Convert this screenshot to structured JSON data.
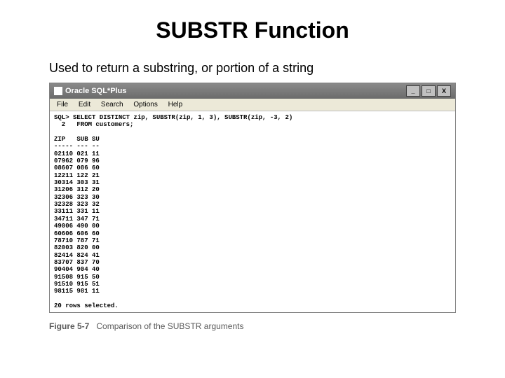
{
  "title": "SUBSTR Function",
  "subtitle": "Used to return a substring, or portion of a string",
  "window": {
    "app_title": "Oracle SQL*Plus",
    "menus": [
      "File",
      "Edit",
      "Search",
      "Options",
      "Help"
    ],
    "controls": {
      "minimize": "_",
      "maximize": "□",
      "close": "X"
    }
  },
  "sql": {
    "prompt": "SQL>",
    "line1": "SELECT DISTINCT zip, SUBSTR(zip, 1, 3), SUBSTR(zip, -3, 2)",
    "line2_num": "  2",
    "line2": "  FROM customers;"
  },
  "columns": {
    "c1": "ZIP",
    "c2": "SUB",
    "c3": "SU",
    "sep1": "-----",
    "sep2": "---",
    "sep3": "--"
  },
  "rows": [
    [
      "02110",
      "021",
      "11"
    ],
    [
      "07962",
      "079",
      "96"
    ],
    [
      "08607",
      "086",
      "60"
    ],
    [
      "12211",
      "122",
      "21"
    ],
    [
      "30314",
      "303",
      "31"
    ],
    [
      "31206",
      "312",
      "20"
    ],
    [
      "32306",
      "323",
      "30"
    ],
    [
      "32328",
      "323",
      "32"
    ],
    [
      "33111",
      "331",
      "11"
    ],
    [
      "34711",
      "347",
      "71"
    ],
    [
      "49006",
      "490",
      "00"
    ],
    [
      "60606",
      "606",
      "60"
    ],
    [
      "78710",
      "787",
      "71"
    ],
    [
      "82003",
      "820",
      "00"
    ],
    [
      "82414",
      "824",
      "41"
    ],
    [
      "83707",
      "837",
      "70"
    ],
    [
      "90404",
      "904",
      "40"
    ],
    [
      "91508",
      "915",
      "50"
    ],
    [
      "91510",
      "915",
      "51"
    ],
    [
      "98115",
      "981",
      "11"
    ]
  ],
  "footer": "20 rows selected.",
  "caption": {
    "label": "Figure 5-7",
    "text": "Comparison of the SUBSTR arguments"
  }
}
